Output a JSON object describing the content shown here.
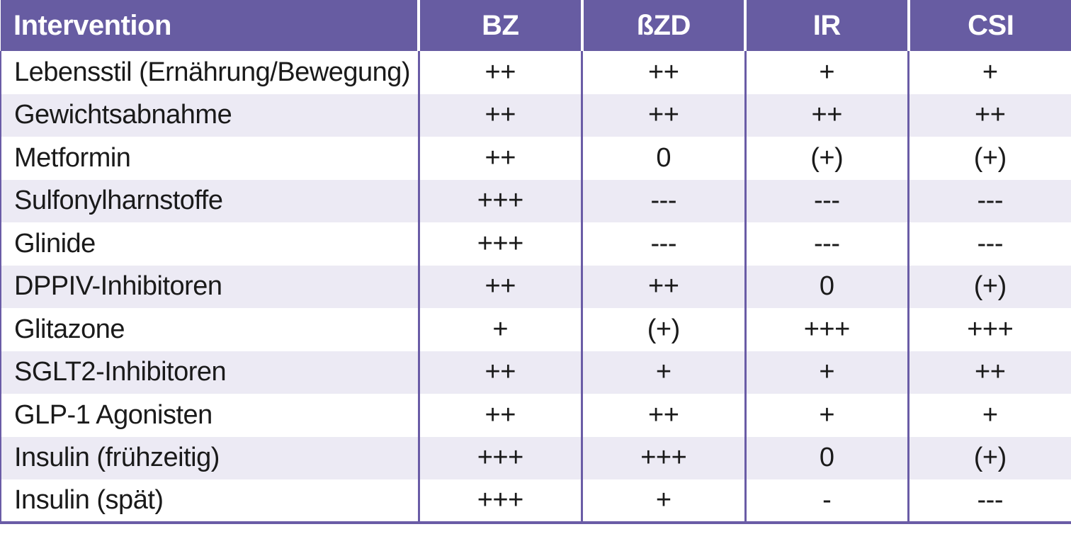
{
  "colors": {
    "header_bg": "#675CA2",
    "grid_line": "#6A5CA6",
    "alt_row_bg": "#ECEAF4",
    "header_text": "#FFFFFF",
    "body_text": "#1A1A1A"
  },
  "chart_data": {
    "type": "table",
    "title": "",
    "legend_position": "none",
    "columns": [
      "Intervention",
      "BZ",
      "ßZD",
      "IR",
      "CSI"
    ],
    "rows": [
      {
        "intervention": "Lebensstil (Ernährung/Bewegung)",
        "values": [
          "++",
          "++",
          "+",
          "+"
        ]
      },
      {
        "intervention": "Gewichtsabnahme",
        "values": [
          "++",
          "++",
          "++",
          "++"
        ]
      },
      {
        "intervention": "Metformin",
        "values": [
          "++",
          "0",
          "(+)",
          "(+)"
        ]
      },
      {
        "intervention": "Sulfonylharnstoffe",
        "values": [
          "+++",
          "---",
          "---",
          "---"
        ]
      },
      {
        "intervention": "Glinide",
        "values": [
          "+++",
          "---",
          "---",
          "---"
        ]
      },
      {
        "intervention": "DPPIV-Inhibitoren",
        "values": [
          "++",
          "++",
          "0",
          "(+)"
        ]
      },
      {
        "intervention": "Glitazone",
        "values": [
          "+",
          "(+)",
          "+++",
          "+++"
        ]
      },
      {
        "intervention": "SGLT2-Inhibitoren",
        "values": [
          "++",
          "+",
          "+",
          "++"
        ]
      },
      {
        "intervention": "GLP-1 Agonisten",
        "values": [
          "++",
          "++",
          "+",
          "+"
        ]
      },
      {
        "intervention": "Insulin (frühzeitig)",
        "values": [
          "+++",
          "+++",
          "0",
          "(+)"
        ]
      },
      {
        "intervention": "Insulin (spät)",
        "values": [
          "+++",
          "+",
          "-",
          "---"
        ]
      }
    ]
  }
}
